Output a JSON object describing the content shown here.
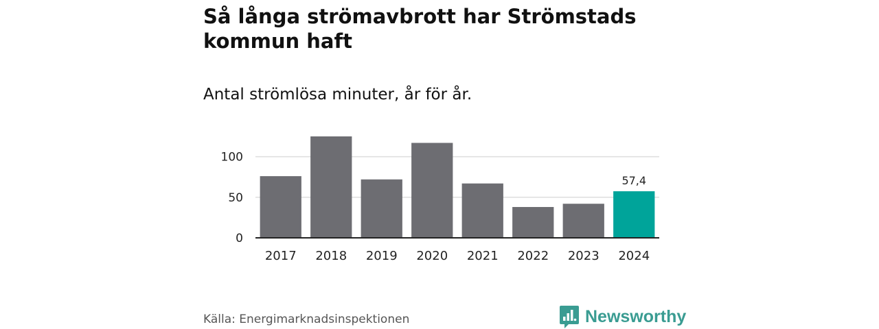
{
  "title": "Så långa strömavbrott har Strömstads kommun haft",
  "subtitle": "Antal strömlösa minuter, år för år.",
  "source": "Källa: Energimarknadsinspektionen",
  "brand": {
    "name": "Newsworthy",
    "icon": "newsworthy-logo-icon",
    "color": "#3a9c92"
  },
  "chart_data": {
    "type": "bar",
    "title": "Så långa strömavbrott har Strömstads kommun haft",
    "subtitle": "Antal strömlösa minuter, år för år.",
    "xlabel": "",
    "ylabel": "",
    "categories": [
      "2017",
      "2018",
      "2019",
      "2020",
      "2021",
      "2022",
      "2023",
      "2024"
    ],
    "values": [
      76,
      125,
      72,
      117,
      67,
      38,
      42,
      57.4
    ],
    "highlight_index": 7,
    "highlight_label": "57,4",
    "ylim": [
      0,
      125
    ],
    "yticks": [
      0,
      50,
      100
    ],
    "ytick_labels": [
      "0",
      "50",
      "100"
    ],
    "grid": true,
    "colors": {
      "bar": "#6d6d72",
      "highlight": "#00a49a",
      "grid": "#dddddd",
      "axis": "#222222"
    }
  }
}
